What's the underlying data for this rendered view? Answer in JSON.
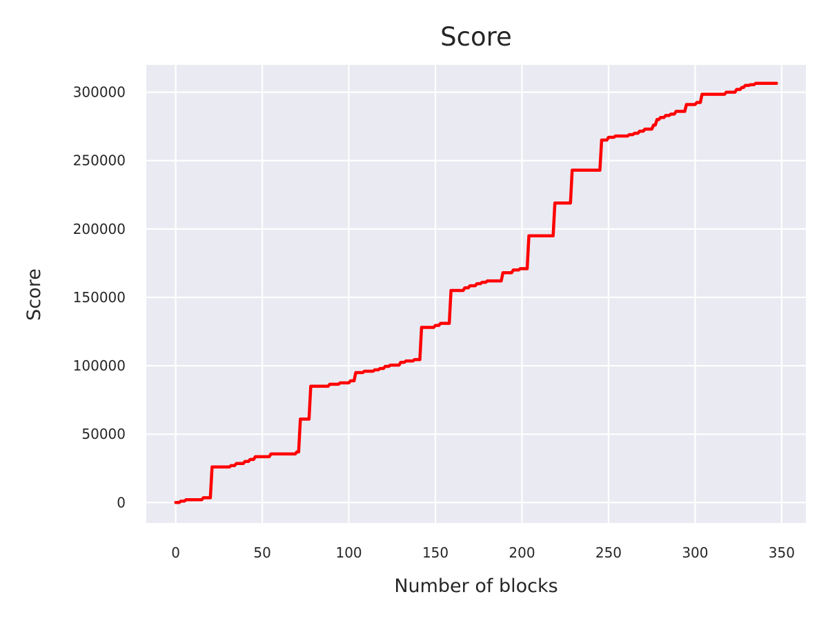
{
  "chart_data": {
    "type": "line",
    "title": "Score",
    "xlabel": "Number of blocks",
    "ylabel": "Score",
    "xlim": [
      -17,
      364
    ],
    "ylim": [
      -15000,
      320000
    ],
    "xticks": [
      0,
      50,
      100,
      150,
      200,
      250,
      300,
      350
    ],
    "yticks": [
      0,
      50000,
      100000,
      150000,
      200000,
      250000,
      300000
    ],
    "grid": true,
    "legend": "none",
    "colors": {
      "background": "#EAEAF2",
      "grid": "#FFFFFF",
      "line": "#FF0000"
    },
    "series": [
      {
        "x": [
          0,
          2,
          3,
          5,
          6,
          14,
          15,
          16,
          20,
          21,
          31,
          32,
          34,
          35,
          39,
          40,
          42,
          43,
          45,
          46,
          48,
          49,
          54,
          55,
          69,
          70,
          71,
          72,
          77,
          78,
          88,
          89,
          94,
          95,
          100,
          101,
          103,
          104,
          108,
          109,
          114,
          115,
          117,
          118,
          120,
          121,
          123,
          124,
          129,
          130,
          132,
          133,
          137,
          138,
          141,
          142,
          149,
          150,
          152,
          153,
          158,
          159,
          166,
          167,
          169,
          170,
          173,
          174,
          176,
          177,
          179,
          180,
          182,
          183,
          188,
          189,
          194,
          195,
          198,
          199,
          203,
          204,
          218,
          219,
          228,
          229,
          245,
          246,
          249,
          250,
          253,
          254,
          261,
          262,
          264,
          265,
          267,
          268,
          270,
          271,
          275,
          276,
          277,
          278,
          279,
          280,
          282,
          283,
          285,
          286,
          288,
          289,
          294,
          295,
          300,
          301,
          303,
          304,
          317,
          318,
          323,
          324,
          326,
          327,
          328,
          329,
          331,
          332,
          334,
          335,
          337,
          338,
          347
        ],
        "y": [
          0,
          0,
          1000,
          1000,
          2000,
          2000,
          2000,
          3500,
          3500,
          26000,
          26000,
          27000,
          27000,
          28500,
          28500,
          30000,
          30000,
          31500,
          31500,
          33500,
          33500,
          33500,
          33500,
          35500,
          35500,
          37000,
          37000,
          61000,
          61000,
          85000,
          85000,
          86500,
          86500,
          87500,
          87500,
          89000,
          89000,
          95000,
          95000,
          96000,
          96000,
          97000,
          97000,
          98000,
          98000,
          99500,
          99500,
          100500,
          100500,
          102500,
          102500,
          103500,
          103500,
          104500,
          104500,
          128000,
          128000,
          129500,
          129500,
          131000,
          131000,
          155000,
          155000,
          157000,
          157000,
          158500,
          158500,
          160000,
          160000,
          161000,
          161000,
          162000,
          162000,
          162000,
          162000,
          168000,
          168000,
          170000,
          170000,
          171000,
          171000,
          195000,
          195000,
          219000,
          219000,
          243000,
          243000,
          265000,
          265000,
          267000,
          267000,
          268000,
          268000,
          269000,
          269000,
          270000,
          270000,
          271500,
          271500,
          273000,
          273000,
          276000,
          276000,
          280000,
          280000,
          281500,
          281500,
          283000,
          283000,
          284000,
          284000,
          286000,
          286000,
          291000,
          291000,
          292500,
          292500,
          298500,
          298500,
          300000,
          300000,
          302000,
          302000,
          303500,
          303500,
          305000,
          305000,
          305500,
          305500,
          306500,
          306500,
          306500,
          306500
        ]
      }
    ]
  }
}
